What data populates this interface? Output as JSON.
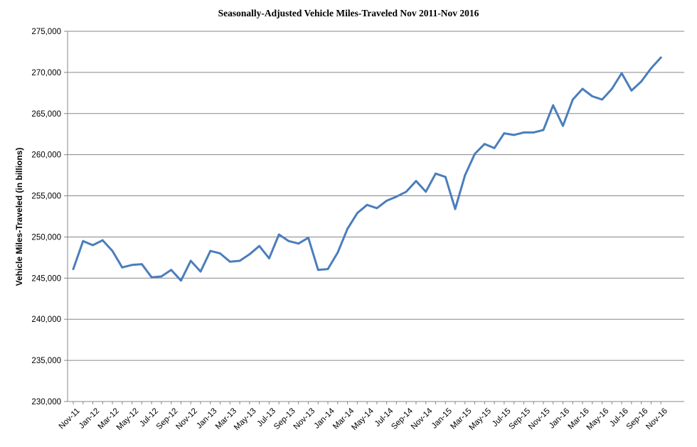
{
  "chart_data": {
    "type": "line",
    "title": "Seasonally-Adjusted Vehicle Miles-Traveled Nov 2011-Nov 2016",
    "xlabel": "",
    "ylabel": "Vehicle Miles-Traveled (in billions)",
    "ylim": [
      230000,
      275000
    ],
    "yticks": [
      230000,
      235000,
      240000,
      245000,
      250000,
      255000,
      260000,
      265000,
      270000,
      275000
    ],
    "ytick_labels": [
      "230,000",
      "235,000",
      "240,000",
      "245,000",
      "250,000",
      "255,000",
      "260,000",
      "265,000",
      "270,000",
      "275,000"
    ],
    "grid": "horizontal",
    "legend": "none",
    "line_color": "#4a7ebb",
    "x": [
      "Nov-11",
      "Dec-11",
      "Jan-12",
      "Feb-12",
      "Mar-12",
      "Apr-12",
      "May-12",
      "Jun-12",
      "Jul-12",
      "Aug-12",
      "Sep-12",
      "Oct-12",
      "Nov-12",
      "Dec-12",
      "Jan-13",
      "Feb-13",
      "Mar-13",
      "Apr-13",
      "May-13",
      "Jun-13",
      "Jul-13",
      "Aug-13",
      "Sep-13",
      "Oct-13",
      "Nov-13",
      "Dec-13",
      "Jan-14",
      "Feb-14",
      "Mar-14",
      "Apr-14",
      "May-14",
      "Jun-14",
      "Jul-14",
      "Aug-14",
      "Sep-14",
      "Oct-14",
      "Nov-14",
      "Dec-14",
      "Jan-15",
      "Feb-15",
      "Mar-15",
      "Apr-15",
      "May-15",
      "Jun-15",
      "Jul-15",
      "Aug-15",
      "Sep-15",
      "Oct-15",
      "Nov-15",
      "Dec-15",
      "Jan-16",
      "Feb-16",
      "Mar-16",
      "Apr-16",
      "May-16",
      "Jun-16",
      "Jul-16",
      "Aug-16",
      "Sep-16",
      "Oct-16",
      "Nov-16"
    ],
    "xtick_labels": [
      "Nov-11",
      "Jan-12",
      "Mar-12",
      "May-12",
      "Jul-12",
      "Sep-12",
      "Nov-12",
      "Jan-13",
      "Mar-13",
      "May-13",
      "Jul-13",
      "Sep-13",
      "Nov-13",
      "Jan-14",
      "Mar-14",
      "May-14",
      "Jul-14",
      "Sep-14",
      "Nov-14",
      "Jan-15",
      "Mar-15",
      "May-15",
      "Jul-15",
      "Sep-15",
      "Nov-15",
      "Jan-16",
      "Mar-16",
      "May-16",
      "Jul-16",
      "Sep-16",
      "Nov-16"
    ],
    "series": [
      {
        "values": [
          246100,
          249500,
          249000,
          249600,
          248300,
          246300,
          246600,
          246700,
          245100,
          245200,
          246000,
          244700,
          247100,
          245800,
          248300,
          248000,
          247000,
          247100,
          247900,
          248900,
          247400,
          250300,
          249500,
          249200,
          249900,
          246000,
          246100,
          248100,
          251000,
          252900,
          253900,
          253500,
          254400,
          254900,
          255500,
          256800,
          255500,
          257700,
          257300,
          253400,
          257500,
          260100,
          261300,
          260800,
          262600,
          262400,
          262700,
          262700,
          263000,
          266000,
          263500,
          266700,
          268000,
          267100,
          266700,
          268000,
          269900,
          267800,
          268900,
          270500,
          271800
        ]
      }
    ]
  }
}
